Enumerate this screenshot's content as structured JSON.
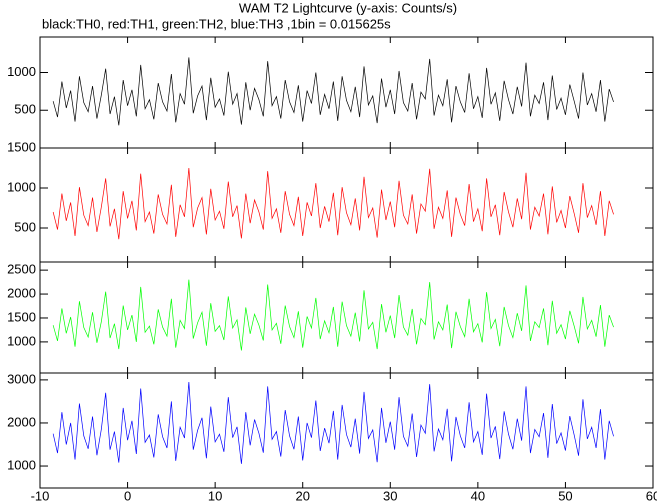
{
  "chart_data": {
    "type": "line",
    "title": "WAM T2 Lightcurve (y-axis: Counts/s)",
    "subtitle": "black:TH0, red:TH1, green:TH2, blue:TH3 ,1bin = 0.015625s",
    "xlim": [
      -10,
      60
    ],
    "xticks": [
      -10,
      0,
      10,
      20,
      30,
      40,
      50,
      60
    ],
    "x": [
      -8.5,
      -8,
      -7.5,
      -7,
      -6.5,
      -6,
      -5.5,
      -5,
      -4.5,
      -4,
      -3.5,
      -3,
      -2.5,
      -2,
      -1.5,
      -1,
      -0.5,
      0,
      0.5,
      1,
      1.5,
      2,
      2.5,
      3,
      3.5,
      4,
      4.5,
      5,
      5.5,
      6,
      6.5,
      7,
      7.5,
      8,
      8.5,
      9,
      9.5,
      10,
      10.5,
      11,
      11.5,
      12,
      12.5,
      13,
      13.5,
      14,
      14.5,
      15,
      15.5,
      16,
      16.5,
      17,
      17.5,
      18,
      18.5,
      19,
      19.5,
      20,
      20.5,
      21,
      21.5,
      22,
      22.5,
      23,
      23.5,
      24,
      24.5,
      25,
      25.5,
      26,
      26.5,
      27,
      27.5,
      28,
      28.5,
      29,
      29.5,
      30,
      30.5,
      31,
      31.5,
      32,
      32.5,
      33,
      33.5,
      34,
      34.5,
      35,
      35.5,
      36,
      36.5,
      37,
      37.5,
      38,
      38.5,
      39,
      39.5,
      40,
      40.5,
      41,
      41.5,
      42,
      42.5,
      43,
      43.5,
      44,
      44.5,
      45,
      45.5,
      46,
      46.5,
      47,
      47.5,
      48,
      48.5,
      49,
      49.5,
      50,
      50.5,
      51,
      51.5,
      52,
      52.5,
      53,
      53.5,
      54,
      54.5,
      55,
      55.5
    ],
    "panels": [
      {
        "color": "#000000",
        "ylim": [
          0,
          1470
        ],
        "yticks": [
          500,
          1000
        ],
        "values": [
          620,
          410,
          880,
          530,
          760,
          350,
          950,
          600,
          480,
          820,
          390,
          700,
          1050,
          450,
          680,
          300,
          900,
          560,
          770,
          420,
          1100,
          520,
          640,
          380,
          860,
          610,
          490,
          980,
          340,
          720,
          580,
          1200,
          460,
          690,
          820,
          370,
          930,
          540,
          650,
          430,
          1010,
          580,
          720,
          310,
          870,
          500,
          790,
          640,
          420,
          1150,
          560,
          680,
          390,
          900,
          610,
          470,
          830,
          350,
          760,
          590,
          1000,
          440,
          710,
          520,
          880,
          360,
          950,
          630,
          480,
          810,
          410,
          1080,
          570,
          690,
          330,
          920,
          540,
          770,
          450,
          1020,
          600,
          490,
          860,
          380,
          740,
          650,
          1180,
          430,
          700,
          560,
          910,
          340,
          820,
          610,
          470,
          990,
          520,
          680,
          400,
          1060,
          580,
          730,
          360,
          890,
          640,
          450,
          810,
          550,
          1130,
          420,
          700,
          590,
          870,
          370,
          960,
          510,
          660,
          440,
          840,
          620,
          390,
          1000,
          570,
          720,
          480,
          900,
          350,
          780,
          610
        ]
      },
      {
        "color": "#ff0000",
        "ylim": [
          75,
          1500
        ],
        "yticks": [
          500,
          1000,
          1500
        ],
        "values": [
          700,
          480,
          930,
          590,
          820,
          400,
          1010,
          660,
          530,
          880,
          450,
          760,
          1120,
          520,
          740,
          360,
          960,
          620,
          840,
          470,
          1180,
          580,
          700,
          430,
          920,
          670,
          550,
          1040,
          390,
          790,
          640,
          1250,
          510,
          750,
          880,
          420,
          990,
          600,
          710,
          490,
          1080,
          640,
          780,
          370,
          930,
          560,
          850,
          700,
          480,
          1210,
          620,
          740,
          440,
          960,
          670,
          530,
          890,
          400,
          820,
          650,
          1060,
          500,
          770,
          580,
          940,
          410,
          1010,
          690,
          540,
          870,
          470,
          1140,
          630,
          750,
          380,
          980,
          600,
          830,
          510,
          1090,
          660,
          550,
          920,
          430,
          800,
          710,
          1240,
          490,
          760,
          620,
          970,
          390,
          880,
          670,
          530,
          1050,
          580,
          740,
          460,
          1120,
          640,
          790,
          410,
          950,
          700,
          510,
          870,
          610,
          1190,
          480,
          760,
          650,
          930,
          420,
          1020,
          570,
          720,
          500,
          900,
          680,
          440,
          1060,
          630,
          780,
          540,
          960,
          400,
          840,
          670
        ]
      },
      {
        "color": "#00ff00",
        "ylim": [
          350,
          2670
        ],
        "yticks": [
          1000,
          1500,
          2000,
          2500
        ],
        "values": [
          1350,
          1020,
          1700,
          1180,
          1520,
          900,
          1850,
          1300,
          1100,
          1620,
          980,
          1420,
          2050,
          1080,
          1380,
          850,
          1760,
          1250,
          1560,
          1000,
          2150,
          1200,
          1330,
          950,
          1680,
          1310,
          1120,
          1900,
          880,
          1450,
          1280,
          2300,
          1070,
          1400,
          1620,
          920,
          1810,
          1220,
          1340,
          1040,
          1950,
          1290,
          1460,
          820,
          1720,
          1170,
          1580,
          1350,
          1030,
          2200,
          1250,
          1390,
          960,
          1760,
          1320,
          1090,
          1640,
          880,
          1530,
          1290,
          1920,
          1060,
          1440,
          1190,
          1730,
          900,
          1840,
          1340,
          1120,
          1610,
          1010,
          2080,
          1270,
          1410,
          850,
          1790,
          1200,
          1550,
          1080,
          1980,
          1310,
          1140,
          1690,
          950,
          1490,
          1360,
          2250,
          1050,
          1420,
          1250,
          1780,
          870,
          1630,
          1320,
          1110,
          1900,
          1210,
          1380,
          990,
          2040,
          1280,
          1470,
          910,
          1730,
          1340,
          1090,
          1600,
          1230,
          2180,
          1020,
          1420,
          1300,
          1700,
          930,
          1860,
          1180,
          1360,
          1060,
          1650,
          1330,
          970,
          1940,
          1270,
          1450,
          1110,
          1770,
          900,
          1560,
          1310
        ]
      },
      {
        "color": "#0000ff",
        "ylim": [
          490,
          3160
        ],
        "yticks": [
          1000,
          2000,
          3000
        ],
        "values": [
          1750,
          1300,
          2250,
          1500,
          2000,
          1150,
          2450,
          1700,
          1400,
          2150,
          1250,
          1850,
          2700,
          1380,
          1800,
          1080,
          2350,
          1600,
          2050,
          1280,
          2800,
          1550,
          1720,
          1200,
          2200,
          1680,
          1420,
          2500,
          1120,
          1900,
          1650,
          2950,
          1380,
          1830,
          2120,
          1180,
          2380,
          1560,
          1740,
          1330,
          2600,
          1660,
          1910,
          1050,
          2250,
          1480,
          2080,
          1760,
          1310,
          2850,
          1620,
          1800,
          1220,
          2300,
          1700,
          1390,
          2150,
          1130,
          2000,
          1660,
          2520,
          1350,
          1880,
          1530,
          2280,
          1150,
          2420,
          1730,
          1440,
          2100,
          1290,
          2720,
          1640,
          1840,
          1090,
          2350,
          1540,
          2030,
          1380,
          2600,
          1690,
          1460,
          2220,
          1210,
          1950,
          1760,
          2900,
          1340,
          1860,
          1610,
          2330,
          1110,
          2140,
          1700,
          1420,
          2480,
          1560,
          1800,
          1260,
          2680,
          1650,
          1920,
          1160,
          2270,
          1740,
          1390,
          2100,
          1590,
          2850,
          1300,
          1850,
          1680,
          2230,
          1190,
          2440,
          1520,
          1770,
          1360,
          2160,
          1720,
          1240,
          2550,
          1630,
          1900,
          1420,
          2320,
          1150,
          2050,
          1690
        ]
      }
    ]
  }
}
